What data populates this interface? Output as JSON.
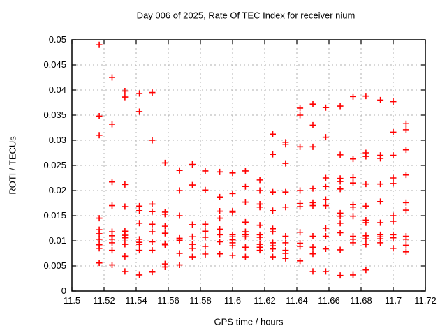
{
  "chart_data": {
    "type": "scatter",
    "title": "Day 006 of 2025, Rate Of TEC Index for receiver nium",
    "xlabel": "GPS time / hours",
    "ylabel": "ROTI / TECUs",
    "xlim": [
      11.5,
      11.72
    ],
    "ylim": [
      0,
      0.05
    ],
    "xticks": [
      11.5,
      11.52,
      11.54,
      11.56,
      11.58,
      11.6,
      11.62,
      11.64,
      11.66,
      11.68,
      11.7,
      11.72
    ],
    "xtick_labels": [
      "11.5",
      "11.52",
      "11.54",
      "11.56",
      "11.58",
      "11.6",
      "11.62",
      "11.64",
      "11.66",
      "11.68",
      "11.7",
      "11.72"
    ],
    "yticks": [
      0,
      0.005,
      0.01,
      0.015,
      0.02,
      0.025,
      0.03,
      0.035,
      0.04,
      0.045,
      0.05
    ],
    "ytick_labels": [
      "0",
      "0.005",
      "0.01",
      "0.015",
      "0.02",
      "0.025",
      "0.03",
      "0.035",
      "0.04",
      "0.045",
      "0.05"
    ],
    "grid": true,
    "legend": "none",
    "marker": "plus",
    "marker_color": "#ff0000",
    "axis_color": "#000000",
    "grid_color": "#b0b0b0",
    "background": "#ffffff",
    "series": [
      {
        "name": "ROTI",
        "columns": [
          {
            "x": 11.517,
            "y": [
              0.049,
              0.0348,
              0.031,
              0.0145,
              0.0122,
              0.0114,
              0.0103,
              0.0092,
              0.0085,
              0.0056
            ]
          },
          {
            "x": 11.525,
            "y": [
              0.0425,
              0.0332,
              0.0217,
              0.017,
              0.0118,
              0.011,
              0.0103,
              0.0096,
              0.0081,
              0.0052
            ]
          },
          {
            "x": 11.533,
            "y": [
              0.0398,
              0.0386,
              0.0212,
              0.0168,
              0.0119,
              0.0111,
              0.0106,
              0.0093,
              0.0069,
              0.0039
            ]
          },
          {
            "x": 11.542,
            "y": [
              0.0393,
              0.0357,
              0.0169,
              0.016,
              0.0135,
              0.0103,
              0.0097,
              0.0093,
              0.0081,
              0.0032
            ]
          },
          {
            "x": 11.55,
            "y": [
              0.0395,
              0.03,
              0.0173,
              0.0158,
              0.0133,
              0.0118,
              0.0098,
              0.0081,
              0.0038
            ]
          },
          {
            "x": 11.558,
            "y": [
              0.0255,
              0.0157,
              0.0153,
              0.0129,
              0.0115,
              0.0094,
              0.0092,
              0.0054,
              0.0048
            ]
          },
          {
            "x": 11.567,
            "y": [
              0.024,
              0.02,
              0.015,
              0.0105,
              0.0101,
              0.0075,
              0.0052
            ]
          },
          {
            "x": 11.575,
            "y": [
              0.0252,
              0.0211,
              0.0132,
              0.0108,
              0.0093,
              0.0085,
              0.0068
            ]
          },
          {
            "x": 11.583,
            "y": [
              0.0239,
              0.0201,
              0.0133,
              0.0119,
              0.0107,
              0.0089,
              0.0075,
              0.0072
            ]
          },
          {
            "x": 11.592,
            "y": [
              0.0237,
              0.0187,
              0.0159,
              0.0145,
              0.0123,
              0.0112,
              0.0098,
              0.0074
            ]
          },
          {
            "x": 11.6,
            "y": [
              0.0235,
              0.0194,
              0.0159,
              0.0157,
              0.0112,
              0.0108,
              0.0102,
              0.0096,
              0.009,
              0.0071
            ]
          },
          {
            "x": 11.608,
            "y": [
              0.0239,
              0.0208,
              0.0177,
              0.0137,
              0.0118,
              0.0112,
              0.0108,
              0.0087,
              0.0068
            ]
          },
          {
            "x": 11.617,
            "y": [
              0.0221,
              0.02,
              0.0173,
              0.0167,
              0.0131,
              0.0112,
              0.0107,
              0.0093,
              0.0087,
              0.0081
            ]
          },
          {
            "x": 11.625,
            "y": [
              0.0312,
              0.0272,
              0.0197,
              0.016,
              0.0124,
              0.0118,
              0.0096,
              0.009,
              0.0084,
              0.0068
            ]
          },
          {
            "x": 11.633,
            "y": [
              0.0296,
              0.0292,
              0.0254,
              0.0197,
              0.0167,
              0.0109,
              0.0096,
              0.0081,
              0.0075,
              0.0065
            ]
          },
          {
            "x": 11.642,
            "y": [
              0.0364,
              0.035,
              0.0287,
              0.02,
              0.0174,
              0.0168,
              0.0117,
              0.0095,
              0.0089,
              0.006
            ]
          },
          {
            "x": 11.65,
            "y": [
              0.0372,
              0.033,
              0.0287,
              0.0204,
              0.0176,
              0.017,
              0.0109,
              0.0087,
              0.0074,
              0.0039
            ]
          },
          {
            "x": 11.658,
            "y": [
              0.0365,
              0.0306,
              0.0225,
              0.0208,
              0.0182,
              0.017,
              0.0125,
              0.0109,
              0.0084,
              0.0039
            ]
          },
          {
            "x": 11.667,
            "y": [
              0.0368,
              0.0271,
              0.0224,
              0.0218,
              0.0203,
              0.0155,
              0.0149,
              0.0135,
              0.0116,
              0.0082,
              0.0031
            ]
          },
          {
            "x": 11.675,
            "y": [
              0.0387,
              0.0263,
              0.0226,
              0.0215,
              0.0172,
              0.0167,
              0.0149,
              0.0109,
              0.0103,
              0.0096,
              0.0032
            ]
          },
          {
            "x": 11.683,
            "y": [
              0.0388,
              0.0275,
              0.0268,
              0.0213,
              0.0169,
              0.0141,
              0.0136,
              0.011,
              0.0104,
              0.0093,
              0.0042
            ]
          },
          {
            "x": 11.692,
            "y": [
              0.038,
              0.027,
              0.0264,
              0.0213,
              0.0178,
              0.0136,
              0.0112,
              0.0108,
              0.0104,
              0.0096
            ]
          },
          {
            "x": 11.7,
            "y": [
              0.0377,
              0.0316,
              0.027,
              0.0225,
              0.0214,
              0.015,
              0.0139,
              0.0112,
              0.0106,
              0.0085
            ]
          },
          {
            "x": 11.708,
            "y": [
              0.0333,
              0.0321,
              0.0281,
              0.0231,
              0.0176,
              0.0161,
              0.0109,
              0.0103,
              0.0091,
              0.0078
            ]
          }
        ]
      }
    ]
  }
}
